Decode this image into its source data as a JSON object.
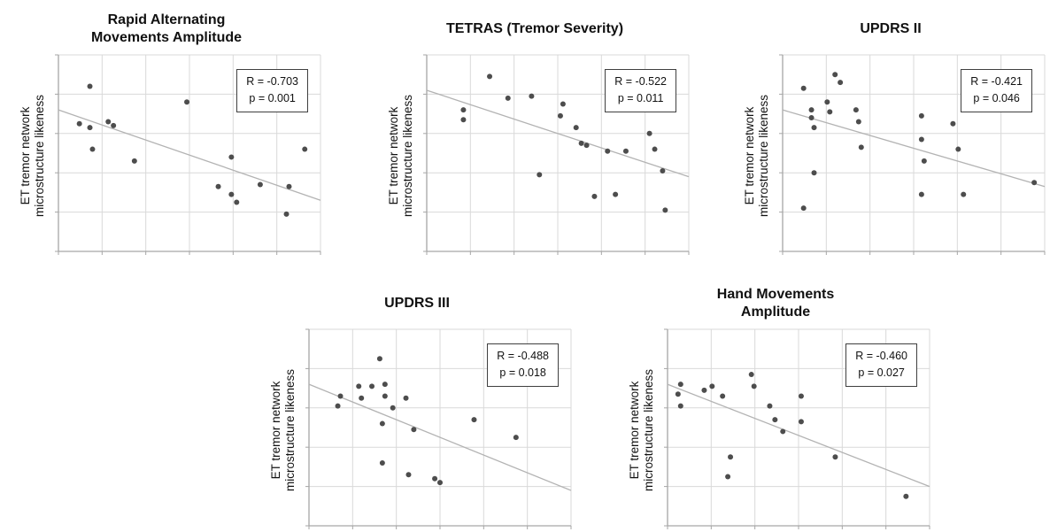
{
  "style": {
    "background": "#ffffff",
    "point_color": "#4d4d4d",
    "trend_color": "#b3b3b3",
    "grid_color": "#d9d9d9",
    "axis_color": "#a6a6a6",
    "stats_border": "#3f3f3f"
  },
  "chart_data": [
    {
      "type": "scatter",
      "title": "Rapid Alternating\nMovements Amplitude",
      "ylabel": "ET tremor network\nmicrostructure likeness",
      "xlabel": "",
      "annotation": {
        "r_label": "R = -0.703",
        "p_label": "p = 0.001"
      },
      "coords": "normalized_0_1",
      "axis_tick_labels_visible": false,
      "grid": {
        "cols": 6,
        "rows": 5
      },
      "trendline": {
        "x1": 0,
        "y1": 0.72,
        "x2": 1,
        "y2": 0.26
      },
      "points": [
        [
          0.12,
          0.84
        ],
        [
          0.08,
          0.65
        ],
        [
          0.12,
          0.63
        ],
        [
          0.19,
          0.66
        ],
        [
          0.21,
          0.64
        ],
        [
          0.13,
          0.52
        ],
        [
          0.29,
          0.46
        ],
        [
          0.49,
          0.76
        ],
        [
          0.66,
          0.48
        ],
        [
          0.61,
          0.33
        ],
        [
          0.66,
          0.29
        ],
        [
          0.68,
          0.25
        ],
        [
          0.77,
          0.34
        ],
        [
          0.88,
          0.33
        ],
        [
          0.94,
          0.52
        ],
        [
          0.87,
          0.19
        ]
      ]
    },
    {
      "type": "scatter",
      "title": "TETRAS (Tremor Severity)",
      "ylabel": "ET tremor network\nmicrostructure likeness",
      "xlabel": "",
      "annotation": {
        "r_label": "R = -0.522",
        "p_label": "p = 0.011"
      },
      "coords": "normalized_0_1",
      "axis_tick_labels_visible": false,
      "grid": {
        "cols": 6,
        "rows": 5
      },
      "trendline": {
        "x1": 0,
        "y1": 0.82,
        "x2": 1,
        "y2": 0.38
      },
      "points": [
        [
          0.24,
          0.89
        ],
        [
          0.14,
          0.72
        ],
        [
          0.14,
          0.67
        ],
        [
          0.31,
          0.78
        ],
        [
          0.4,
          0.79
        ],
        [
          0.52,
          0.75
        ],
        [
          0.51,
          0.69
        ],
        [
          0.57,
          0.63
        ],
        [
          0.59,
          0.55
        ],
        [
          0.61,
          0.54
        ],
        [
          0.69,
          0.51
        ],
        [
          0.76,
          0.51
        ],
        [
          0.85,
          0.6
        ],
        [
          0.87,
          0.52
        ],
        [
          0.9,
          0.41
        ],
        [
          0.43,
          0.39
        ],
        [
          0.64,
          0.28
        ],
        [
          0.72,
          0.29
        ],
        [
          0.91,
          0.21
        ]
      ]
    },
    {
      "type": "scatter",
      "title": "UPDRS II",
      "ylabel": "ET tremor network\nmicrostructure likeness",
      "xlabel": "",
      "annotation": {
        "r_label": "R = -0.421",
        "p_label": "p = 0.046"
      },
      "coords": "normalized_0_1",
      "axis_tick_labels_visible": false,
      "grid": {
        "cols": 6,
        "rows": 5
      },
      "trendline": {
        "x1": 0,
        "y1": 0.72,
        "x2": 1,
        "y2": 0.33
      },
      "points": [
        [
          0.08,
          0.83
        ],
        [
          0.2,
          0.9
        ],
        [
          0.22,
          0.86
        ],
        [
          0.11,
          0.72
        ],
        [
          0.11,
          0.68
        ],
        [
          0.12,
          0.63
        ],
        [
          0.17,
          0.76
        ],
        [
          0.18,
          0.71
        ],
        [
          0.28,
          0.72
        ],
        [
          0.29,
          0.66
        ],
        [
          0.3,
          0.53
        ],
        [
          0.12,
          0.4
        ],
        [
          0.08,
          0.22
        ],
        [
          0.53,
          0.69
        ],
        [
          0.53,
          0.57
        ],
        [
          0.54,
          0.46
        ],
        [
          0.65,
          0.65
        ],
        [
          0.67,
          0.52
        ],
        [
          0.69,
          0.29
        ],
        [
          0.96,
          0.35
        ],
        [
          0.53,
          0.29
        ]
      ]
    },
    {
      "type": "scatter",
      "title": "UPDRS III",
      "ylabel": "ET tremor network\nmicrostructure likeness",
      "xlabel": "",
      "annotation": {
        "r_label": "R = -0.488",
        "p_label": "p = 0.018"
      },
      "coords": "normalized_0_1",
      "axis_tick_labels_visible": false,
      "grid": {
        "cols": 6,
        "rows": 5
      },
      "trendline": {
        "x1": 0,
        "y1": 0.72,
        "x2": 1,
        "y2": 0.18
      },
      "points": [
        [
          0.27,
          0.85
        ],
        [
          0.12,
          0.66
        ],
        [
          0.11,
          0.61
        ],
        [
          0.19,
          0.71
        ],
        [
          0.2,
          0.65
        ],
        [
          0.24,
          0.71
        ],
        [
          0.29,
          0.72
        ],
        [
          0.29,
          0.66
        ],
        [
          0.32,
          0.6
        ],
        [
          0.37,
          0.65
        ],
        [
          0.28,
          0.52
        ],
        [
          0.4,
          0.49
        ],
        [
          0.63,
          0.54
        ],
        [
          0.79,
          0.45
        ],
        [
          0.28,
          0.32
        ],
        [
          0.38,
          0.26
        ],
        [
          0.48,
          0.24
        ],
        [
          0.5,
          0.22
        ]
      ]
    },
    {
      "type": "scatter",
      "title": "Hand Movements\nAmplitude",
      "ylabel": "ET tremor network\nmicrostructure likeness",
      "xlabel": "",
      "annotation": {
        "r_label": "R = -0.460",
        "p_label": "p = 0.027"
      },
      "coords": "normalized_0_1",
      "axis_tick_labels_visible": false,
      "grid": {
        "cols": 6,
        "rows": 5
      },
      "trendline": {
        "x1": 0,
        "y1": 0.72,
        "x2": 1,
        "y2": 0.2
      },
      "points": [
        [
          0.05,
          0.72
        ],
        [
          0.04,
          0.67
        ],
        [
          0.05,
          0.61
        ],
        [
          0.14,
          0.69
        ],
        [
          0.17,
          0.71
        ],
        [
          0.21,
          0.66
        ],
        [
          0.32,
          0.77
        ],
        [
          0.33,
          0.71
        ],
        [
          0.39,
          0.61
        ],
        [
          0.41,
          0.54
        ],
        [
          0.44,
          0.48
        ],
        [
          0.51,
          0.66
        ],
        [
          0.51,
          0.53
        ],
        [
          0.24,
          0.35
        ],
        [
          0.64,
          0.35
        ],
        [
          0.23,
          0.25
        ],
        [
          0.91,
          0.15
        ]
      ]
    }
  ]
}
